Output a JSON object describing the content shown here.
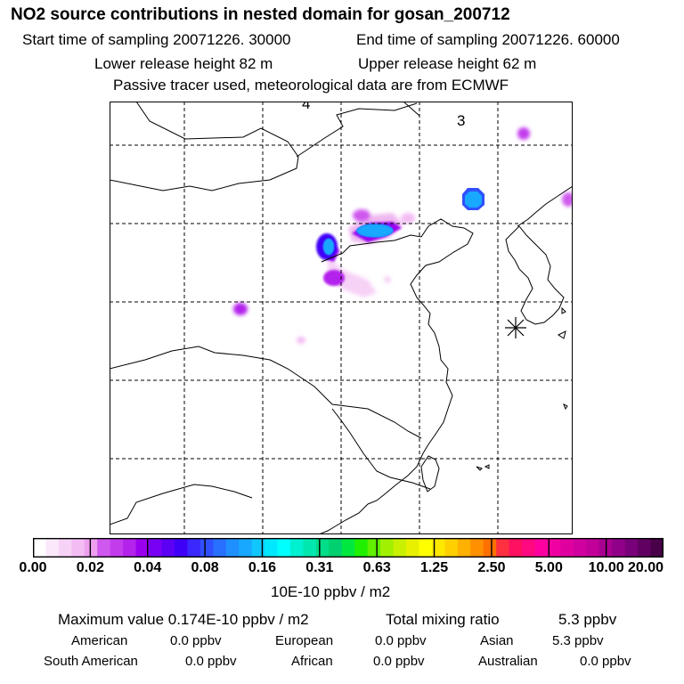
{
  "header": {
    "title": "NO2 source contributions in nested domain for gosan_200712",
    "start_time": "Start time of sampling 20071226. 30000",
    "end_time": "End time of sampling 20071226. 60000",
    "lower_release": "Lower release height   82 m",
    "upper_release": "Upper release height   62 m",
    "tracer_note": "Passive tracer used, meteorological data are from ECMWF"
  },
  "map": {
    "labels": [
      "4",
      "3"
    ],
    "receptor_icon": "asterisk-star-icon",
    "colors": {
      "coast": "#000000",
      "grid": "#000000",
      "frame": "#000000"
    }
  },
  "colorbar": {
    "tick_labels": [
      "0.00",
      "0.02",
      "0.04",
      "0.08",
      "0.16",
      "0.31",
      "0.63",
      "1.25",
      "2.50",
      "5.00",
      "10.00",
      "20.00"
    ],
    "colors": [
      "#ffffff",
      "#fbe9fb",
      "#f7d2f7",
      "#f3bcf3",
      "#eea0ee",
      "#cf58ee",
      "#c23cec",
      "#b323ec",
      "#9a00ef",
      "#7800f4",
      "#5c00f4",
      "#3f00f8",
      "#3a28ff",
      "#3050ff",
      "#2870ff",
      "#1f90ff",
      "#18a8ff",
      "#10c8ff",
      "#00e8ff",
      "#00ffff",
      "#00f0d0",
      "#00e8b0",
      "#00dd88",
      "#00d070",
      "#00e840",
      "#20f000",
      "#60f000",
      "#a0f000",
      "#c8f000",
      "#e8f000",
      "#ffff00",
      "#ffe800",
      "#ffd000",
      "#ffb000",
      "#ff9000",
      "#ff7000",
      "#ff3040",
      "#ff1060",
      "#ff0880",
      "#ff00a0",
      "#f000a0",
      "#e000a0",
      "#d000a0",
      "#c00098",
      "#a80090",
      "#900088",
      "#780078",
      "#600060",
      "#480048"
    ],
    "units": "10E-10 ppbv / m2"
  },
  "summary": {
    "maximum": "Maximum value  0.174E-10 ppbv / m2",
    "total_label": "Total mixing ratio",
    "total_value": "5.3 ppbv",
    "regions": [
      {
        "name": "American",
        "value": "0.0 ppbv"
      },
      {
        "name": "European",
        "value": "0.0 ppbv"
      },
      {
        "name": "Asian",
        "value": "5.3 ppbv"
      },
      {
        "name": "South American",
        "value": "0.0 ppbv"
      },
      {
        "name": "African",
        "value": "0.0 ppbv"
      },
      {
        "name": "Australian",
        "value": "0.0 ppbv"
      }
    ]
  }
}
